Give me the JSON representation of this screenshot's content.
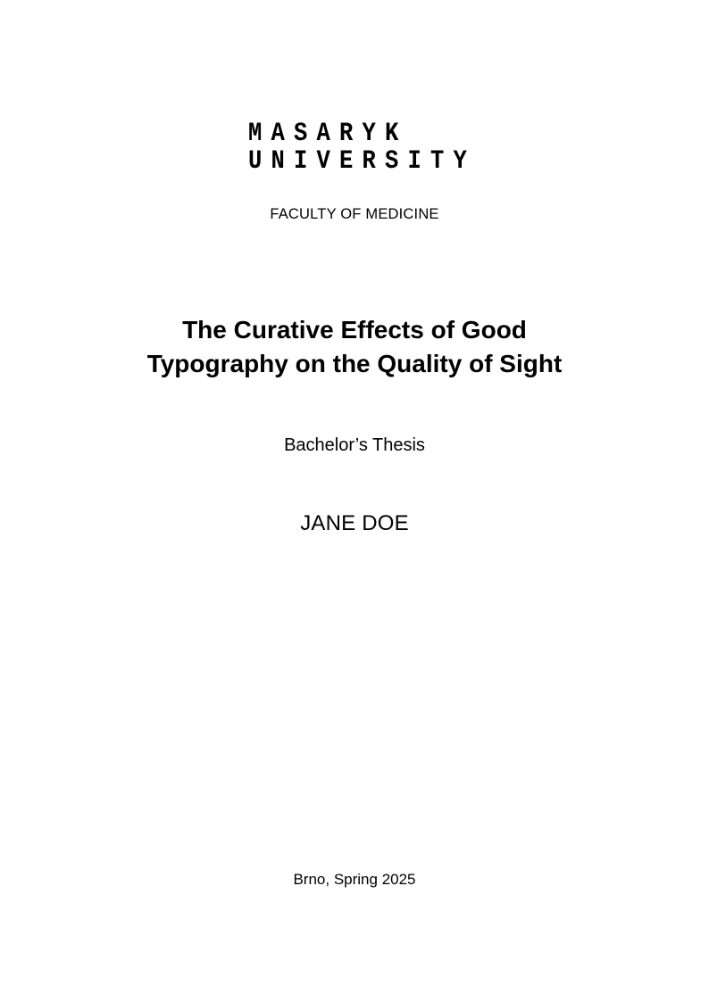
{
  "document": {
    "logo": {
      "line1": "MASARYK",
      "line2": "UNIVERSITY"
    },
    "faculty": "FACULTY OF MEDICINE",
    "title": {
      "line1": "The Curative Effects of Good",
      "line2": "Typography on the Quality of Sight"
    },
    "thesis_type": "Bachelor’s Thesis",
    "author": "JANE DOE",
    "place_date": "Brno, Spring 2025",
    "colors": {
      "text": "#000000",
      "page_background": "#ffffff"
    }
  }
}
